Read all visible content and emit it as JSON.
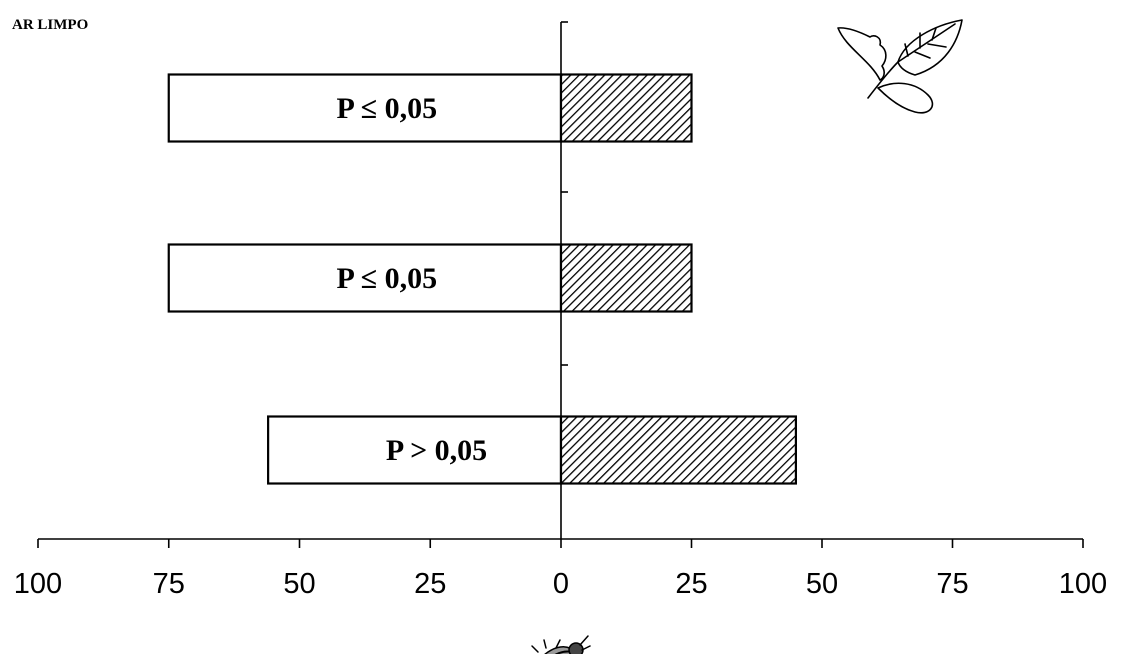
{
  "corner_label": "AR LIMPO",
  "chart_data": {
    "type": "bar",
    "orientation": "horizontal",
    "layout": "diverging",
    "categories": [
      "",
      "",
      ""
    ],
    "series": [
      {
        "values": [
          75,
          75,
          56
        ],
        "fill": "#ffffff"
      },
      {
        "values": [
          25,
          25,
          45
        ],
        "fill": "hatched"
      }
    ],
    "bar_labels": [
      "P ≤ 0,05",
      "P ≤ 0,05",
      "P > 0,05"
    ],
    "xlim": [
      -100,
      100
    ],
    "x_ticks": [
      -100,
      -75,
      -50,
      -25,
      0,
      25,
      50,
      75,
      100
    ],
    "x_tick_labels": [
      "100",
      "75",
      "50",
      "25",
      "0",
      "25",
      "50",
      "75",
      "100"
    ],
    "grid": false,
    "title": "",
    "xlabel": "",
    "ylabel": ""
  },
  "icons": {
    "top_right": "leaf-icon",
    "bottom": "insect-icon"
  },
  "colors": {
    "ink": "#000000",
    "background": "#ffffff"
  }
}
